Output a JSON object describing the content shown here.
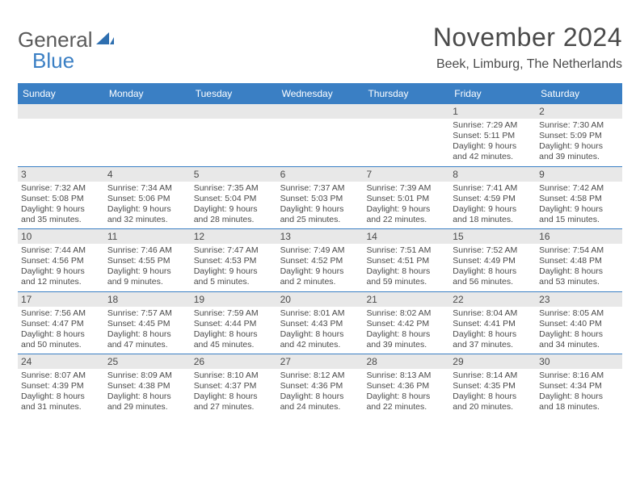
{
  "logo": {
    "text1": "General",
    "text2": "Blue"
  },
  "title": "November 2024",
  "location": "Beek, Limburg, The Netherlands",
  "colors": {
    "header_bg": "#3a7fc4",
    "daynum_bg": "#e8e8e8",
    "text": "#4a4a4a",
    "rule": "#3a7fc4"
  },
  "day_labels": [
    "Sunday",
    "Monday",
    "Tuesday",
    "Wednesday",
    "Thursday",
    "Friday",
    "Saturday"
  ],
  "weeks": [
    [
      {
        "n": "",
        "sunrise": "",
        "sunset": "",
        "daylight": ""
      },
      {
        "n": "",
        "sunrise": "",
        "sunset": "",
        "daylight": ""
      },
      {
        "n": "",
        "sunrise": "",
        "sunset": "",
        "daylight": ""
      },
      {
        "n": "",
        "sunrise": "",
        "sunset": "",
        "daylight": ""
      },
      {
        "n": "",
        "sunrise": "",
        "sunset": "",
        "daylight": ""
      },
      {
        "n": "1",
        "sunrise": "Sunrise: 7:29 AM",
        "sunset": "Sunset: 5:11 PM",
        "daylight": "Daylight: 9 hours and 42 minutes."
      },
      {
        "n": "2",
        "sunrise": "Sunrise: 7:30 AM",
        "sunset": "Sunset: 5:09 PM",
        "daylight": "Daylight: 9 hours and 39 minutes."
      }
    ],
    [
      {
        "n": "3",
        "sunrise": "Sunrise: 7:32 AM",
        "sunset": "Sunset: 5:08 PM",
        "daylight": "Daylight: 9 hours and 35 minutes."
      },
      {
        "n": "4",
        "sunrise": "Sunrise: 7:34 AM",
        "sunset": "Sunset: 5:06 PM",
        "daylight": "Daylight: 9 hours and 32 minutes."
      },
      {
        "n": "5",
        "sunrise": "Sunrise: 7:35 AM",
        "sunset": "Sunset: 5:04 PM",
        "daylight": "Daylight: 9 hours and 28 minutes."
      },
      {
        "n": "6",
        "sunrise": "Sunrise: 7:37 AM",
        "sunset": "Sunset: 5:03 PM",
        "daylight": "Daylight: 9 hours and 25 minutes."
      },
      {
        "n": "7",
        "sunrise": "Sunrise: 7:39 AM",
        "sunset": "Sunset: 5:01 PM",
        "daylight": "Daylight: 9 hours and 22 minutes."
      },
      {
        "n": "8",
        "sunrise": "Sunrise: 7:41 AM",
        "sunset": "Sunset: 4:59 PM",
        "daylight": "Daylight: 9 hours and 18 minutes."
      },
      {
        "n": "9",
        "sunrise": "Sunrise: 7:42 AM",
        "sunset": "Sunset: 4:58 PM",
        "daylight": "Daylight: 9 hours and 15 minutes."
      }
    ],
    [
      {
        "n": "10",
        "sunrise": "Sunrise: 7:44 AM",
        "sunset": "Sunset: 4:56 PM",
        "daylight": "Daylight: 9 hours and 12 minutes."
      },
      {
        "n": "11",
        "sunrise": "Sunrise: 7:46 AM",
        "sunset": "Sunset: 4:55 PM",
        "daylight": "Daylight: 9 hours and 9 minutes."
      },
      {
        "n": "12",
        "sunrise": "Sunrise: 7:47 AM",
        "sunset": "Sunset: 4:53 PM",
        "daylight": "Daylight: 9 hours and 5 minutes."
      },
      {
        "n": "13",
        "sunrise": "Sunrise: 7:49 AM",
        "sunset": "Sunset: 4:52 PM",
        "daylight": "Daylight: 9 hours and 2 minutes."
      },
      {
        "n": "14",
        "sunrise": "Sunrise: 7:51 AM",
        "sunset": "Sunset: 4:51 PM",
        "daylight": "Daylight: 8 hours and 59 minutes."
      },
      {
        "n": "15",
        "sunrise": "Sunrise: 7:52 AM",
        "sunset": "Sunset: 4:49 PM",
        "daylight": "Daylight: 8 hours and 56 minutes."
      },
      {
        "n": "16",
        "sunrise": "Sunrise: 7:54 AM",
        "sunset": "Sunset: 4:48 PM",
        "daylight": "Daylight: 8 hours and 53 minutes."
      }
    ],
    [
      {
        "n": "17",
        "sunrise": "Sunrise: 7:56 AM",
        "sunset": "Sunset: 4:47 PM",
        "daylight": "Daylight: 8 hours and 50 minutes."
      },
      {
        "n": "18",
        "sunrise": "Sunrise: 7:57 AM",
        "sunset": "Sunset: 4:45 PM",
        "daylight": "Daylight: 8 hours and 47 minutes."
      },
      {
        "n": "19",
        "sunrise": "Sunrise: 7:59 AM",
        "sunset": "Sunset: 4:44 PM",
        "daylight": "Daylight: 8 hours and 45 minutes."
      },
      {
        "n": "20",
        "sunrise": "Sunrise: 8:01 AM",
        "sunset": "Sunset: 4:43 PM",
        "daylight": "Daylight: 8 hours and 42 minutes."
      },
      {
        "n": "21",
        "sunrise": "Sunrise: 8:02 AM",
        "sunset": "Sunset: 4:42 PM",
        "daylight": "Daylight: 8 hours and 39 minutes."
      },
      {
        "n": "22",
        "sunrise": "Sunrise: 8:04 AM",
        "sunset": "Sunset: 4:41 PM",
        "daylight": "Daylight: 8 hours and 37 minutes."
      },
      {
        "n": "23",
        "sunrise": "Sunrise: 8:05 AM",
        "sunset": "Sunset: 4:40 PM",
        "daylight": "Daylight: 8 hours and 34 minutes."
      }
    ],
    [
      {
        "n": "24",
        "sunrise": "Sunrise: 8:07 AM",
        "sunset": "Sunset: 4:39 PM",
        "daylight": "Daylight: 8 hours and 31 minutes."
      },
      {
        "n": "25",
        "sunrise": "Sunrise: 8:09 AM",
        "sunset": "Sunset: 4:38 PM",
        "daylight": "Daylight: 8 hours and 29 minutes."
      },
      {
        "n": "26",
        "sunrise": "Sunrise: 8:10 AM",
        "sunset": "Sunset: 4:37 PM",
        "daylight": "Daylight: 8 hours and 27 minutes."
      },
      {
        "n": "27",
        "sunrise": "Sunrise: 8:12 AM",
        "sunset": "Sunset: 4:36 PM",
        "daylight": "Daylight: 8 hours and 24 minutes."
      },
      {
        "n": "28",
        "sunrise": "Sunrise: 8:13 AM",
        "sunset": "Sunset: 4:36 PM",
        "daylight": "Daylight: 8 hours and 22 minutes."
      },
      {
        "n": "29",
        "sunrise": "Sunrise: 8:14 AM",
        "sunset": "Sunset: 4:35 PM",
        "daylight": "Daylight: 8 hours and 20 minutes."
      },
      {
        "n": "30",
        "sunrise": "Sunrise: 8:16 AM",
        "sunset": "Sunset: 4:34 PM",
        "daylight": "Daylight: 8 hours and 18 minutes."
      }
    ]
  ]
}
